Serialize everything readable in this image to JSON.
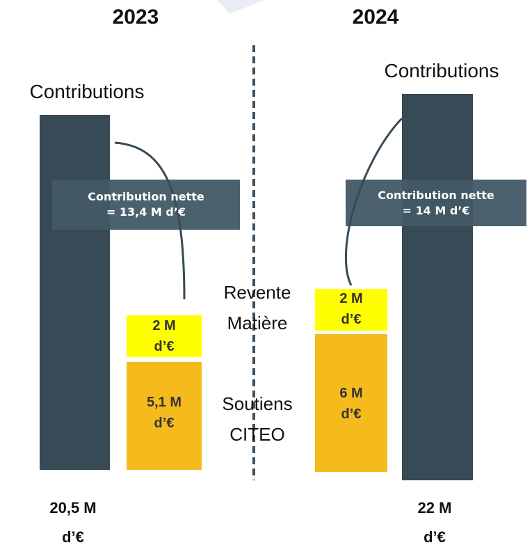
{
  "years": [
    {
      "year": "2023",
      "contributions_label": "Contributions",
      "net_box": [
        "Contribution nette",
        "= 13,4 M d’€"
      ],
      "resale": [
        "2 M",
        "d’€"
      ],
      "support": [
        "5,1 M",
        "d’€"
      ],
      "total": [
        "20,5 M",
        "d’€"
      ]
    },
    {
      "year": "2024",
      "contributions_label": "Contributions",
      "net_box": [
        "Contribution nette",
        "= 14 M d’€"
      ],
      "resale": [
        "2 M",
        "d’€"
      ],
      "support": [
        "6 M",
        "d’€"
      ],
      "total": [
        "22 M",
        "d’€"
      ]
    }
  ],
  "middle_labels": {
    "resale": [
      "Revente",
      "Matière"
    ],
    "support": [
      "Soutiens",
      "CITEO"
    ]
  }
}
